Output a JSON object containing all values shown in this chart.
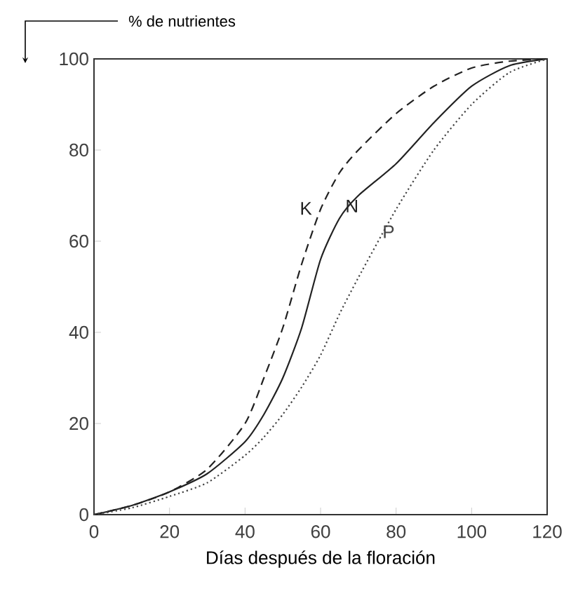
{
  "chart_data": {
    "type": "line",
    "xlabel": "Días después de la floración",
    "ylabel": "% de nutrientes",
    "x": [
      0,
      10,
      20,
      30,
      40,
      45,
      50,
      55,
      60,
      65,
      70,
      80,
      90,
      100,
      110,
      120
    ],
    "series": [
      {
        "name": "K",
        "color": "#222222",
        "line_style": "dashed",
        "values": [
          0,
          2,
          5,
          10,
          20,
          30,
          41,
          55,
          67,
          75,
          80,
          88,
          94,
          98,
          99.5,
          100
        ]
      },
      {
        "name": "N",
        "color": "#222222",
        "line_style": "solid",
        "values": [
          0,
          2,
          5,
          9,
          16,
          22,
          30,
          41,
          56,
          65,
          70,
          77,
          86,
          94,
          98.5,
          100
        ]
      },
      {
        "name": "P",
        "color": "#444444",
        "line_style": "dotted",
        "values": [
          0,
          1.5,
          4,
          7,
          13,
          17,
          22,
          28,
          35,
          44,
          52,
          67,
          80,
          90,
          97,
          100
        ]
      }
    ],
    "xlim": [
      0,
      120
    ],
    "ylim": [
      0,
      100
    ],
    "xticks": [
      0,
      20,
      40,
      60,
      80,
      100,
      120
    ],
    "yticks": [
      0,
      20,
      40,
      60,
      80,
      100
    ],
    "grid": false,
    "legend": false,
    "marker": "none"
  }
}
